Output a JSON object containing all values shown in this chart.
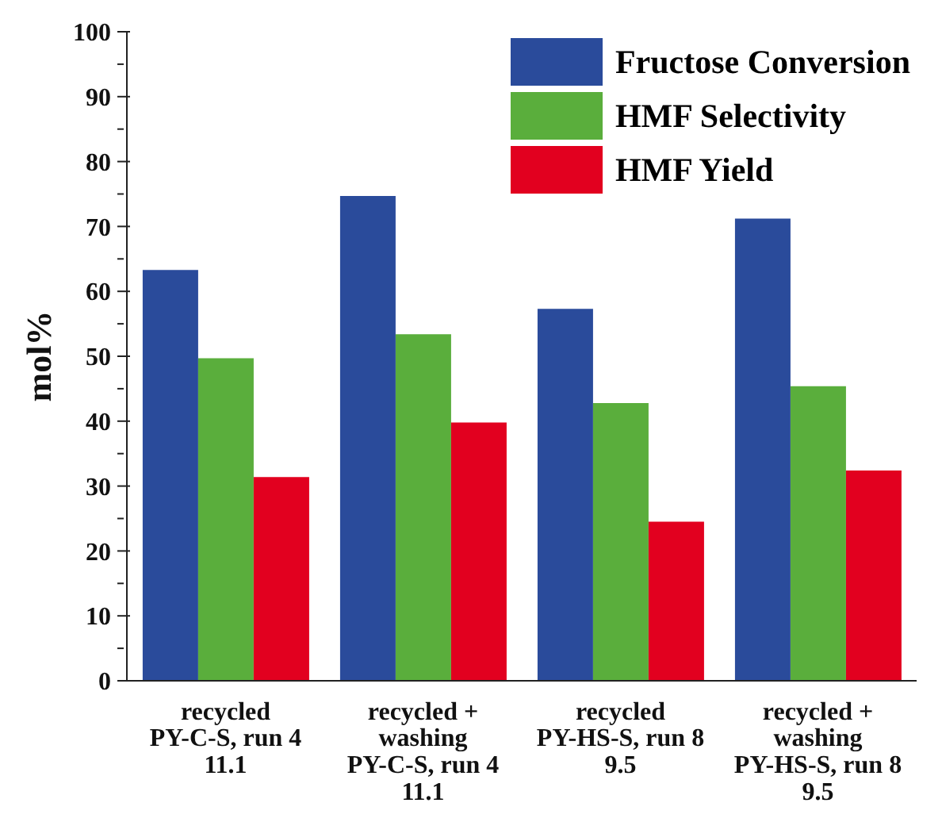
{
  "chart_data": {
    "type": "bar",
    "ylabel": "mol%",
    "categories": [
      "recycled\nPY-C-S, run 4\n11.1",
      "recycled +\nwashing\nPY-C-S, run 4\n11.1",
      "recycled\nPY-HS-S, run 8\n9.5",
      "recycled +\nwashing\nPY-HS-S, run 8\n9.5"
    ],
    "series": [
      {
        "name": "Fructose Conversion",
        "color": "#2a4b9b",
        "values": [
          63.3,
          74.7,
          57.3,
          71.2
        ]
      },
      {
        "name": "HMF Selectivity",
        "color": "#5aae3c",
        "values": [
          49.7,
          53.4,
          42.8,
          45.4
        ]
      },
      {
        "name": "HMF Yield",
        "color": "#e2001f",
        "values": [
          31.4,
          39.8,
          24.5,
          32.4
        ]
      }
    ],
    "ylim": [
      0,
      100
    ],
    "yticks": [
      0,
      {
        "value": 5,
        "label": null
      },
      10,
      {
        "value": 15,
        "label": null
      },
      20,
      {
        "value": 25,
        "label": null
      },
      30,
      {
        "value": 35,
        "label": null
      },
      40,
      {
        "value": 45,
        "label": null
      },
      50,
      {
        "value": 55,
        "label": null
      },
      60,
      {
        "value": 65,
        "label": null
      },
      70,
      {
        "value": 75,
        "label": null
      },
      80,
      {
        "value": 85,
        "label": null
      },
      90,
      {
        "value": 95,
        "label": null
      },
      100
    ],
    "grid": false,
    "legend": "top right"
  }
}
